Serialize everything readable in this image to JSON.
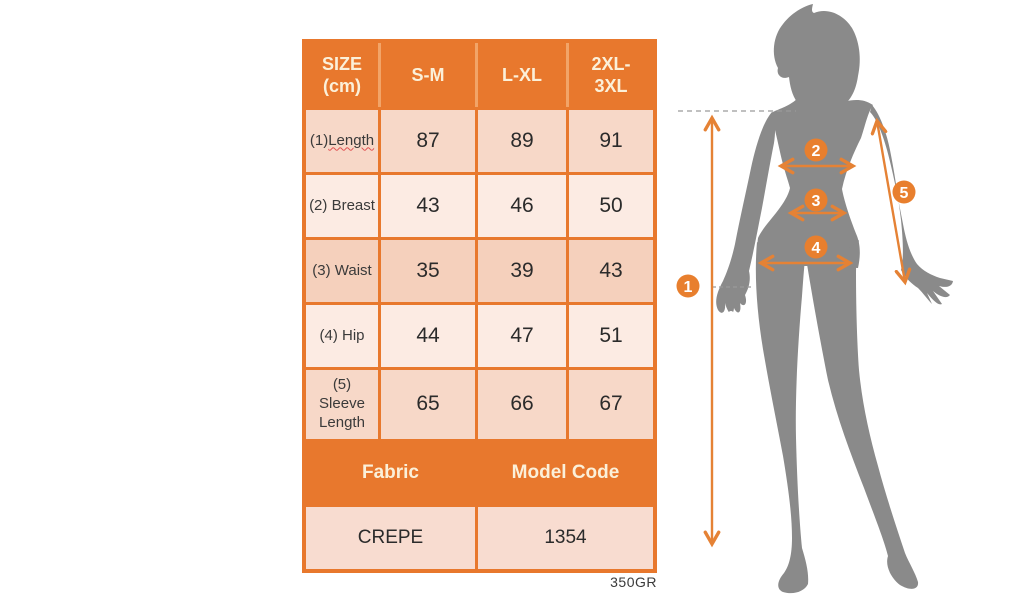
{
  "table": {
    "header": [
      "SIZE\n(cm)",
      "S-M",
      "L-XL",
      "2XL-\n3XL"
    ],
    "rows": [
      {
        "label": "(1)\nLength",
        "values": [
          "87",
          "89",
          "91"
        ],
        "wavy_last_line": true,
        "shade": "dark"
      },
      {
        "label": "(2) Breast",
        "values": [
          "43",
          "46",
          "50"
        ],
        "shade": "light"
      },
      {
        "label": "(3) Waist",
        "values": [
          "35",
          "39",
          "43"
        ],
        "shade": "waist"
      },
      {
        "label": "(4) Hip",
        "values": [
          "44",
          "47",
          "51"
        ],
        "shade": "light"
      },
      {
        "label": "(5)\nSleeve\nLength",
        "values": [
          "65",
          "66",
          "67"
        ],
        "shade": "dark"
      }
    ],
    "footer_header": {
      "fabric": "Fabric",
      "model_code": "Model Code"
    },
    "footer_values": {
      "fabric": "CREPE",
      "model_code": "1354"
    }
  },
  "note": {
    "text": "350GR"
  },
  "figure": {
    "markers": [
      "1",
      "2",
      "3",
      "4",
      "5"
    ],
    "marker_meanings": {
      "1": "Length",
      "2": "Breast",
      "3": "Waist",
      "4": "Hip",
      "5": "Sleeve Length"
    }
  },
  "colors": {
    "table_orange": "#E8782D",
    "header_text_cream": "#FBF0D9",
    "row_dark": "#F7D8C8",
    "row_light": "#FCEBE3",
    "row_waist": "#F5D0BC",
    "row_footer_value": "#F8DCD0",
    "arrow_orange": "#E58235",
    "marker_circle_orange": "#E87F2E",
    "silhouette_gray": "#8A8A8A",
    "dashed_gray": "#9B9B9B",
    "value_text": "#2B2B2B"
  }
}
